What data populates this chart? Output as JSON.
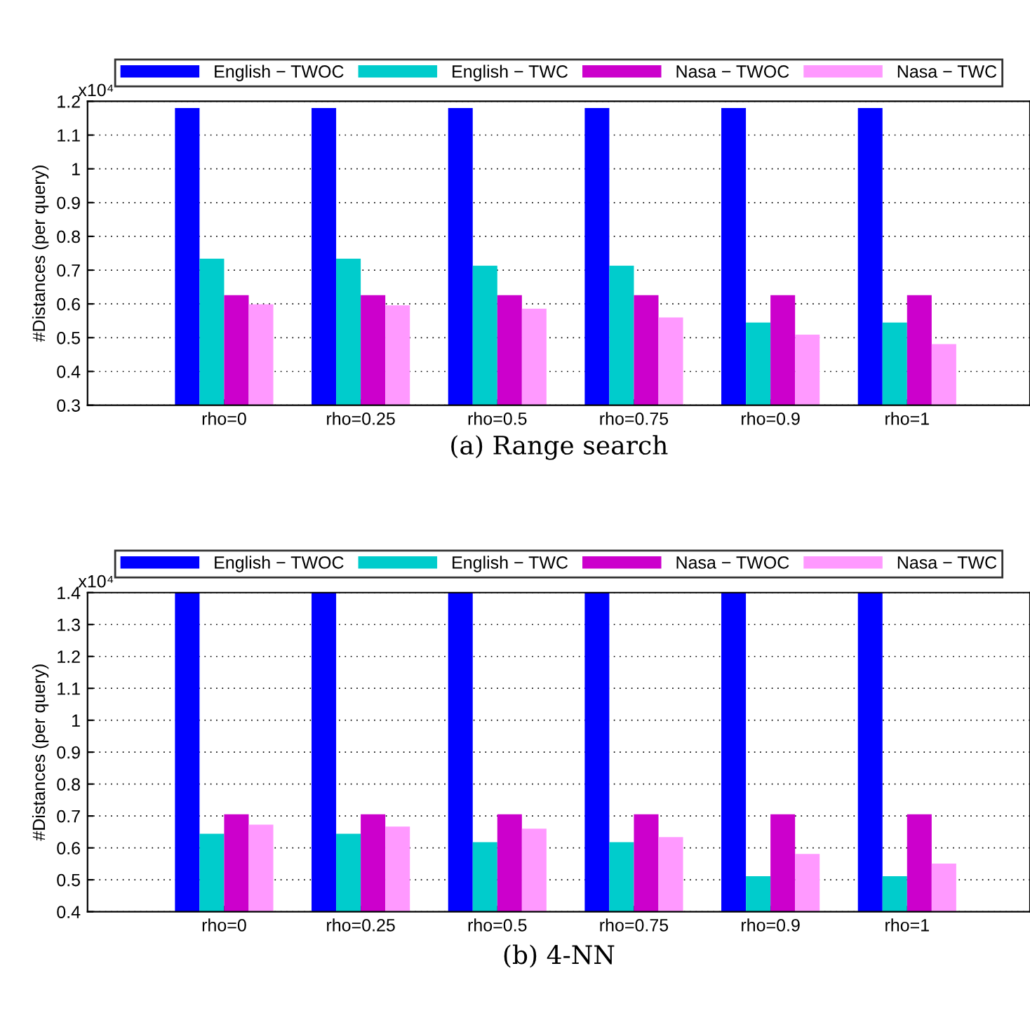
{
  "chart_data": [
    {
      "type": "bar",
      "title": "(a) Range search",
      "ylabel": "#Distances (per query)",
      "annotations": [
        "x10⁴"
      ],
      "categories": [
        "rho=0",
        "rho=0.25",
        "rho=0.5",
        "rho=0.75",
        "rho=0.9",
        "rho=1"
      ],
      "series": [
        {
          "name": "English − TWOC",
          "color": "#0000ff",
          "values": [
            1.18,
            1.18,
            1.18,
            1.18,
            1.18,
            1.18
          ]
        },
        {
          "name": "English − TWC",
          "color": "#00cccc",
          "values": [
            0.734,
            0.734,
            0.713,
            0.713,
            0.545,
            0.545
          ]
        },
        {
          "name": "Nasa − TWOC",
          "color": "#cc00cc",
          "values": [
            0.626,
            0.626,
            0.626,
            0.626,
            0.626,
            0.626
          ]
        },
        {
          "name": "Nasa − TWC",
          "color": "#ff99ff",
          "values": [
            0.599,
            0.596,
            0.586,
            0.56,
            0.509,
            0.481
          ]
        }
      ],
      "ylim": [
        0.3,
        1.2
      ],
      "yticks": [
        0.3,
        0.4,
        0.5,
        0.6,
        0.7,
        0.8,
        0.9,
        1,
        1.1,
        1.2
      ],
      "grid": "y",
      "legend": "top"
    },
    {
      "type": "bar",
      "title": "(b) 4-NN",
      "ylabel": "#Distances (per query)",
      "annotations": [
        "x10⁴"
      ],
      "categories": [
        "rho=0",
        "rho=0.25",
        "rho=0.5",
        "rho=0.75",
        "rho=0.9",
        "rho=1"
      ],
      "series": [
        {
          "name": "English − TWOC",
          "color": "#0000ff",
          "values": [
            1.4,
            1.4,
            1.4,
            1.4,
            1.4,
            1.4
          ]
        },
        {
          "name": "English − TWC",
          "color": "#00cccc",
          "values": [
            0.644,
            0.644,
            0.618,
            0.618,
            0.511,
            0.511
          ]
        },
        {
          "name": "Nasa − TWOC",
          "color": "#cc00cc",
          "values": [
            0.705,
            0.705,
            0.705,
            0.705,
            0.705,
            0.705
          ]
        },
        {
          "name": "Nasa − TWC",
          "color": "#ff99ff",
          "values": [
            0.673,
            0.667,
            0.66,
            0.634,
            0.581,
            0.551
          ]
        }
      ],
      "ylim": [
        0.4,
        1.4
      ],
      "yticks": [
        0.4,
        0.5,
        0.6,
        0.7,
        0.8,
        0.9,
        1,
        1.1,
        1.2,
        1.3,
        1.4
      ],
      "grid": "y",
      "legend": "top"
    }
  ]
}
